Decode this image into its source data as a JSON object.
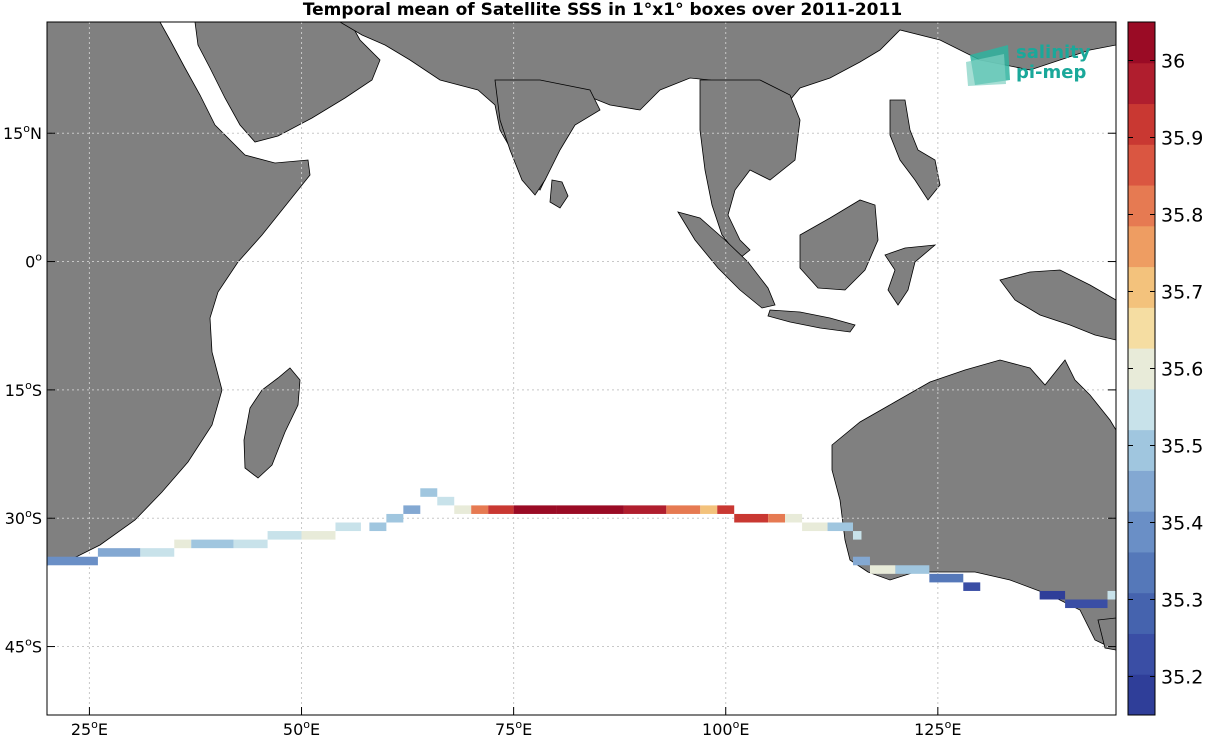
{
  "title": "Temporal mean of Satellite SSS in 1°x1° boxes over 2011-2011",
  "logo": {
    "line1": "salinity",
    "line2": "pi-mep"
  },
  "map": {
    "lon_range": [
      20,
      146
    ],
    "lat_range": [
      -53,
      28
    ],
    "land_color": "#808080",
    "grid_lons": [
      25,
      50,
      75,
      100,
      125
    ],
    "grid_lats": [
      15,
      0,
      -15,
      -30,
      -45
    ],
    "lon_labels": [
      {
        "deg": "25",
        "hemi": "E"
      },
      {
        "deg": "50",
        "hemi": "E"
      },
      {
        "deg": "75",
        "hemi": "E"
      },
      {
        "deg": "100",
        "hemi": "E"
      },
      {
        "deg": "125",
        "hemi": "E"
      }
    ],
    "lat_labels": [
      {
        "deg": "15",
        "hemi": "N"
      },
      {
        "deg": "0",
        "hemi": ""
      },
      {
        "deg": "15",
        "hemi": "S"
      },
      {
        "deg": "30",
        "hemi": "S"
      },
      {
        "deg": "45",
        "hemi": "S"
      }
    ]
  },
  "colorbar": {
    "min": 35.15,
    "max": 36.05,
    "ticks": [
      "35.2",
      "35.3",
      "35.4",
      "35.5",
      "35.6",
      "35.7",
      "35.8",
      "35.9",
      "36"
    ],
    "colors": [
      "#2f3e99",
      "#3a4ea5",
      "#4563ae",
      "#5578b9",
      "#6a8fc6",
      "#83a8d2",
      "#a0c6df",
      "#c8e2ea",
      "#e8ebd9",
      "#f5dda2",
      "#f3c27c",
      "#ee9d62",
      "#e67a52",
      "#da5641",
      "#c93832",
      "#b01e2e",
      "#9a0b25"
    ]
  },
  "chart_data": {
    "type": "heatmap",
    "title": "Temporal mean of Satellite SSS in 1°x1° boxes over 2011-2011",
    "units_box": "1°x1°",
    "cells": [
      {
        "lon_start": 20,
        "lon_end": 26,
        "lat": -35,
        "sss": 35.38
      },
      {
        "lon_start": 26,
        "lon_end": 31,
        "lat": -34,
        "sss": 35.45
      },
      {
        "lon_start": 31,
        "lon_end": 35,
        "lat": -34,
        "sss": 35.55
      },
      {
        "lon_start": 35,
        "lon_end": 37,
        "lat": -33,
        "sss": 35.6
      },
      {
        "lon_start": 37,
        "lon_end": 42,
        "lat": -33,
        "sss": 35.5
      },
      {
        "lon_start": 42,
        "lon_end": 46,
        "lat": -33,
        "sss": 35.56
      },
      {
        "lon_start": 46,
        "lon_end": 50,
        "lat": -32,
        "sss": 35.55
      },
      {
        "lon_start": 50,
        "lon_end": 54,
        "lat": -32,
        "sss": 35.6
      },
      {
        "lon_start": 54,
        "lon_end": 57,
        "lat": -31,
        "sss": 35.56
      },
      {
        "lon_start": 58,
        "lon_end": 60,
        "lat": -31,
        "sss": 35.52
      },
      {
        "lon_start": 60,
        "lon_end": 62,
        "lat": -30,
        "sss": 35.48
      },
      {
        "lon_start": 62,
        "lon_end": 64,
        "lat": -29,
        "sss": 35.44
      },
      {
        "lon_start": 64,
        "lon_end": 66,
        "lat": -27,
        "sss": 35.5
      },
      {
        "lon_start": 66,
        "lon_end": 68,
        "lat": -28,
        "sss": 35.56
      },
      {
        "lon_start": 68,
        "lon_end": 70,
        "lat": -29,
        "sss": 35.62
      },
      {
        "lon_start": 70,
        "lon_end": 72,
        "lat": -29,
        "sss": 35.8
      },
      {
        "lon_start": 72,
        "lon_end": 75,
        "lat": -29,
        "sss": 35.9
      },
      {
        "lon_start": 75,
        "lon_end": 80,
        "lat": -29,
        "sss": 36.0
      },
      {
        "lon_start": 80,
        "lon_end": 88,
        "lat": -29,
        "sss": 36.03
      },
      {
        "lon_start": 88,
        "lon_end": 93,
        "lat": -29,
        "sss": 35.95
      },
      {
        "lon_start": 93,
        "lon_end": 97,
        "lat": -29,
        "sss": 35.83
      },
      {
        "lon_start": 97,
        "lon_end": 99,
        "lat": -29,
        "sss": 35.68
      },
      {
        "lon_start": 99,
        "lon_end": 101,
        "lat": -29,
        "sss": 35.9
      },
      {
        "lon_start": 101,
        "lon_end": 105,
        "lat": -30,
        "sss": 35.92
      },
      {
        "lon_start": 105,
        "lon_end": 107,
        "lat": -30,
        "sss": 35.8
      },
      {
        "lon_start": 107,
        "lon_end": 109,
        "lat": -30,
        "sss": 35.62
      },
      {
        "lon_start": 109,
        "lon_end": 112,
        "lat": -31,
        "sss": 35.58
      },
      {
        "lon_start": 112,
        "lon_end": 115,
        "lat": -31,
        "sss": 35.52
      },
      {
        "lon_start": 115,
        "lon_end": 116,
        "lat": -32,
        "sss": 35.55
      },
      {
        "lon_start": 115,
        "lon_end": 117,
        "lat": -35,
        "sss": 35.42
      },
      {
        "lon_start": 117,
        "lon_end": 120,
        "lat": -36,
        "sss": 35.58
      },
      {
        "lon_start": 120,
        "lon_end": 124,
        "lat": -36,
        "sss": 35.48
      },
      {
        "lon_start": 124,
        "lon_end": 128,
        "lat": -37,
        "sss": 35.32
      },
      {
        "lon_start": 128,
        "lon_end": 130,
        "lat": -38,
        "sss": 35.25
      },
      {
        "lon_start": 137,
        "lon_end": 140,
        "lat": -39,
        "sss": 35.2
      },
      {
        "lon_start": 140,
        "lon_end": 145,
        "lat": -40,
        "sss": 35.22
      },
      {
        "lon_start": 145,
        "lon_end": 146,
        "lat": -39,
        "sss": 35.55
      }
    ]
  }
}
